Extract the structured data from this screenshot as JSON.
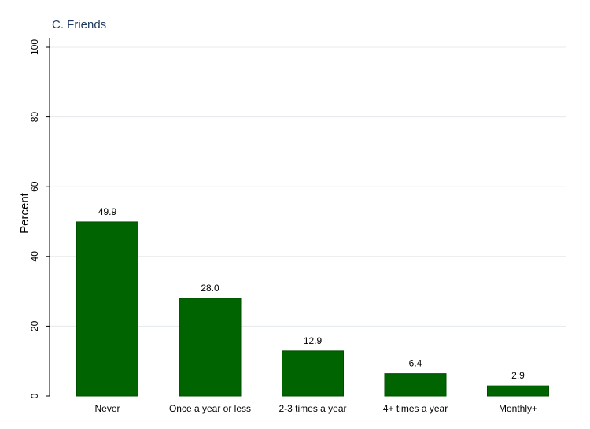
{
  "chart_data": {
    "type": "bar",
    "title": "C. Friends",
    "xlabel": "",
    "ylabel": "Percent",
    "categories": [
      "Never",
      "Once a year or less",
      "2-3 times a year",
      "4+ times a year",
      "Monthly+"
    ],
    "values": [
      49.9,
      28.0,
      12.9,
      6.4,
      2.9
    ],
    "data_labels": [
      "49.9",
      "28.0",
      "12.9",
      "6.4",
      "2.9"
    ],
    "ylim": [
      0,
      100
    ],
    "yticks": [
      0,
      20,
      40,
      60,
      80,
      100
    ],
    "grid": true,
    "legend": "none",
    "bar_color": "#006400"
  }
}
